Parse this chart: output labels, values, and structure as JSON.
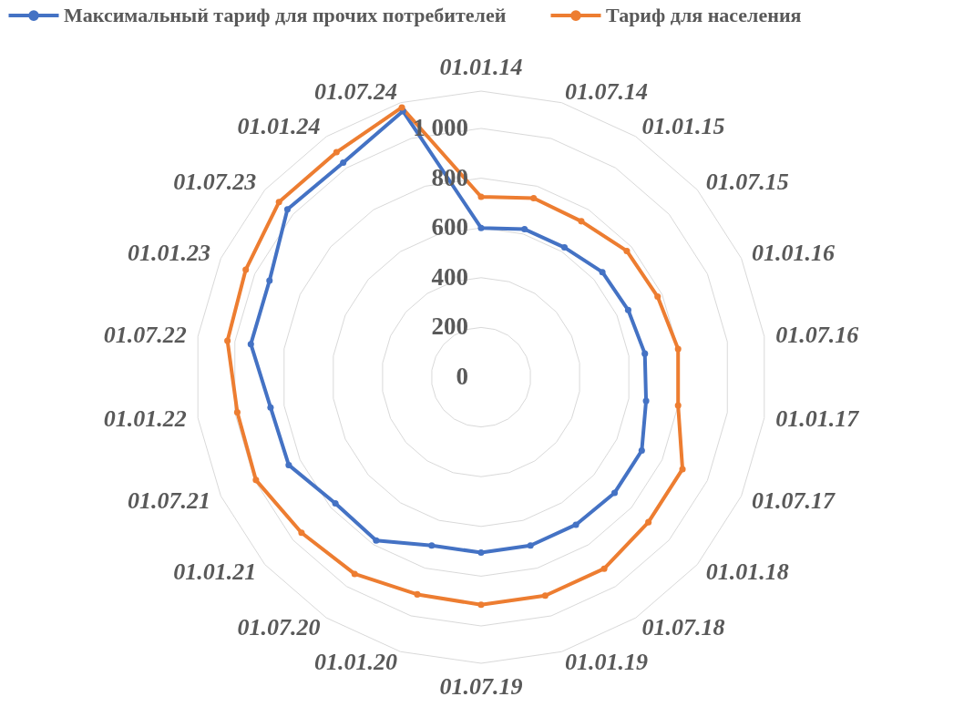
{
  "chart_data": {
    "type": "radar",
    "categories": [
      "01.01.14",
      "01.07.14",
      "01.01.15",
      "01.07.15",
      "01.01.16",
      "01.07.16",
      "01.01.17",
      "01.07.17",
      "01.01.18",
      "01.07.18",
      "01.01.19",
      "01.07.19",
      "01.01.20",
      "01.07.20",
      "01.01.21",
      "01.07.21",
      "01.01.22",
      "01.07.22",
      "01.01.23",
      "01.07.23",
      "01.01.24",
      "01.07.24"
    ],
    "series": [
      {
        "name": "Максимальный тариф для прочих потребителей",
        "color": "#4472c4",
        "values": [
          600,
          620,
          620,
          645,
          650,
          665,
          670,
          710,
          710,
          705,
          705,
          705,
          705,
          780,
          775,
          850,
          855,
          935,
          935,
          1030,
          1025,
          1115
        ]
      },
      {
        "name": "Тариф для населения",
        "color": "#ed7d31",
        "values": [
          725,
          750,
          745,
          775,
          780,
          800,
          800,
          890,
          890,
          915,
          915,
          915,
          910,
          940,
          955,
          995,
          990,
          1030,
          1040,
          1075,
          1075,
          1130
        ]
      }
    ],
    "ylim": [
      0,
      1150
    ],
    "yticks": [
      0,
      200,
      400,
      600,
      800,
      {
        "value": 1000,
        "label": "1 000"
      }
    ],
    "grid": true,
    "legend": "top",
    "marker": "circle"
  }
}
